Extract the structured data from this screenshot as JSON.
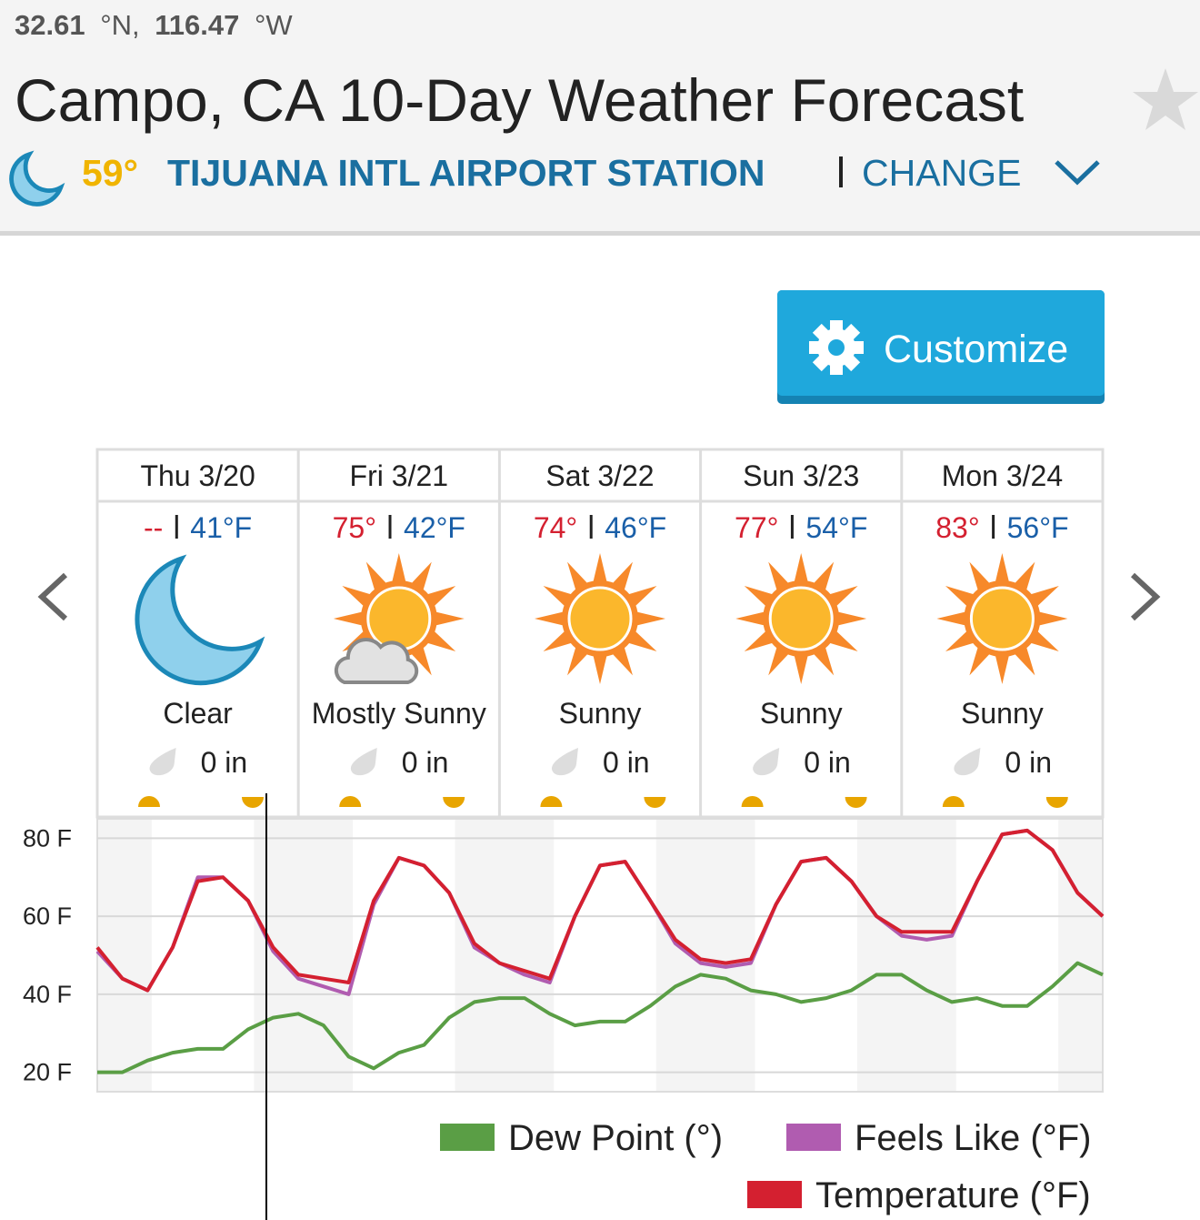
{
  "header": {
    "lat": "32.61",
    "lat_unit": "°N,",
    "lon": "116.47",
    "lon_unit": "°W",
    "title": "Campo, CA 10-Day Weather Forecast",
    "current_temp": "59°",
    "station": "TIJUANA INTL AIRPORT STATION",
    "change": "CHANGE"
  },
  "customize": "Customize",
  "days": [
    {
      "day": "Thu 3/20",
      "high": "--",
      "low": "41°F",
      "condition": "Clear",
      "precip": "0 in"
    },
    {
      "day": "Fri 3/21",
      "high": "75°",
      "low": "42°F",
      "condition": "Mostly Sunny",
      "precip": "0 in"
    },
    {
      "day": "Sat 3/22",
      "high": "74°",
      "low": "46°F",
      "condition": "Sunny",
      "precip": "0 in"
    },
    {
      "day": "Sun 3/23",
      "high": "77°",
      "low": "54°F",
      "condition": "Sunny",
      "precip": "0 in"
    },
    {
      "day": "Mon 3/24",
      "high": "83°",
      "low": "56°F",
      "condition": "Sunny",
      "precip": "0 in"
    }
  ],
  "chart_data": {
    "type": "line",
    "ylim": [
      15,
      85
    ],
    "yticks": [
      {
        "value": 20,
        "label": "20 F"
      },
      {
        "value": 40,
        "label": "40 F"
      },
      {
        "value": 60,
        "label": "60 F"
      },
      {
        "value": 80,
        "label": "80 F"
      }
    ],
    "grid": true,
    "series": [
      {
        "name": "Dew Point (°)",
        "color": "#5a9e45",
        "values": [
          20,
          20,
          23,
          25,
          26,
          26,
          31,
          34,
          35,
          32,
          24,
          21,
          25,
          27,
          34,
          38,
          39,
          39,
          35,
          32,
          33,
          33,
          37,
          42,
          45,
          44,
          41,
          40,
          38,
          39,
          41,
          45,
          45,
          41,
          38,
          39,
          37,
          37,
          42,
          48,
          45
        ]
      },
      {
        "name": "Feels Like (°F)",
        "color": "#b05cb0",
        "values": [
          51,
          44,
          41,
          52,
          70,
          70,
          64,
          51,
          44,
          42,
          40,
          63,
          75,
          73,
          66,
          52,
          48,
          45,
          43,
          60,
          73,
          74,
          64,
          53,
          48,
          47,
          48,
          63,
          74,
          75,
          69,
          60,
          55,
          54,
          55,
          69,
          81,
          82,
          77,
          66,
          60
        ]
      },
      {
        "name": "Temperature (°F)",
        "color": "#d42030",
        "values": [
          52,
          44,
          41,
          52,
          69,
          70,
          64,
          52,
          45,
          44,
          43,
          64,
          75,
          73,
          66,
          53,
          48,
          46,
          44,
          60,
          73,
          74,
          64,
          54,
          49,
          48,
          49,
          63,
          74,
          75,
          69,
          60,
          56,
          56,
          56,
          69,
          81,
          82,
          77,
          66,
          60
        ]
      }
    ]
  }
}
